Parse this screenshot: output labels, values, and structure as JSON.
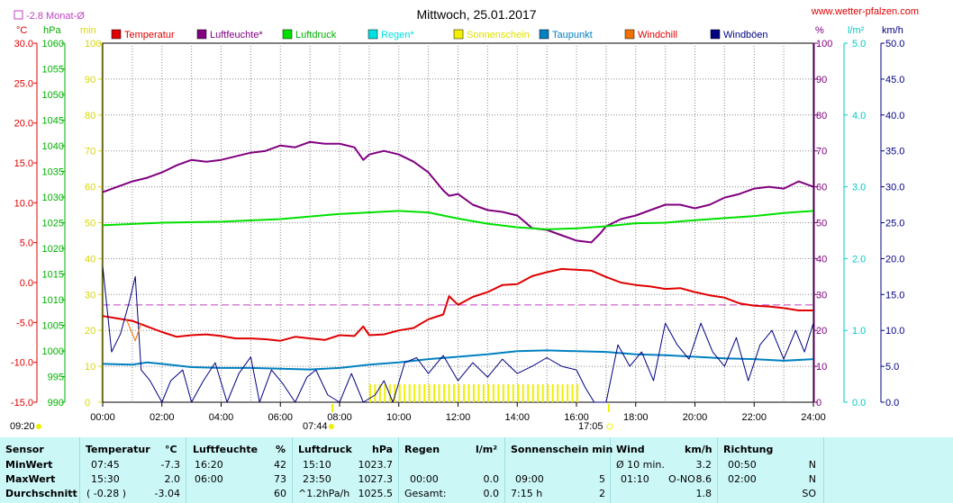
{
  "header": {
    "title": "Mittwoch, 25.01.2017",
    "site": "www.wetter-pfalzen.com",
    "month_avg": "-2.8 Monat-Ø"
  },
  "axis_units": {
    "temp": "°C",
    "press": "hPa",
    "min": "min",
    "pct": "%",
    "rain": "l/m²",
    "wind": "km/h"
  },
  "legend": [
    {
      "label": "Temperatur",
      "color": "#e00000",
      "text_color": "#e00000"
    },
    {
      "label": "Luftfeuchte*",
      "color": "#800080",
      "text_color": "#800080"
    },
    {
      "label": "Luftdruck",
      "color": "#00e000",
      "text_color": "#00b000"
    },
    {
      "label": "Regen*",
      "color": "#00e0e0",
      "text_color": "#00e0e0"
    },
    {
      "label": "Sonnenschein",
      "color": "#f0f000",
      "text_color": "#e0e000"
    },
    {
      "label": "Taupunkt",
      "color": "#0080c0",
      "text_color": "#0080c0"
    },
    {
      "label": "Windchill",
      "color": "#f07000",
      "text_color": "#e00000"
    },
    {
      "label": "Windböen",
      "color": "#000080",
      "text_color": "#000080"
    }
  ],
  "time_markers": {
    "sunrise_left": "09:20",
    "sunrise": "07:44",
    "sunset": "17:05"
  },
  "chart_data": {
    "type": "line",
    "x_ticks": [
      "00:00",
      "02:00",
      "04:00",
      "06:00",
      "08:00",
      "10:00",
      "12:00",
      "14:00",
      "16:00",
      "18:00",
      "20:00",
      "22:00",
      "24:00"
    ],
    "axes": {
      "temp": {
        "ticks": [
          "30.0",
          "25.0",
          "20.0",
          "15.0",
          "10.0",
          "5.0",
          "0.0",
          "-5.0",
          "-10.0",
          "-15.0"
        ],
        "range": [
          -15,
          30
        ]
      },
      "press": {
        "ticks": [
          "1060",
          "1055",
          "1050",
          "1045",
          "1040",
          "1035",
          "1030",
          "1025",
          "1020",
          "1015",
          "1010",
          "1005",
          "1000",
          "995",
          "990"
        ],
        "range": [
          990,
          1060
        ]
      },
      "min": {
        "ticks": [
          "100",
          "90",
          "80",
          "70",
          "60",
          "50",
          "40",
          "30",
          "20",
          "10",
          "0"
        ],
        "range": [
          0,
          100
        ]
      },
      "pct": {
        "ticks": [
          "100",
          "90",
          "80",
          "70",
          "60",
          "50",
          "40",
          "30",
          "20",
          "10",
          "0"
        ],
        "range": [
          0,
          100
        ]
      },
      "rain": {
        "ticks": [
          "5.0",
          "4.0",
          "3.0",
          "2.0",
          "1.0",
          "0.0"
        ],
        "range": [
          0,
          5
        ]
      },
      "wind": {
        "ticks": [
          "50.0",
          "45.0",
          "40.0",
          "35.0",
          "30.0",
          "25.0",
          "20.0",
          "15.0",
          "10.0",
          "5.0",
          "0.0"
        ],
        "range": [
          0,
          50
        ]
      }
    },
    "month_avg_temp": -2.8,
    "series": [
      {
        "name": "Temperatur",
        "axis": "temp",
        "points": [
          [
            0,
            -4.2
          ],
          [
            0.5,
            -4.5
          ],
          [
            1,
            -4.8
          ],
          [
            1.5,
            -5.5
          ],
          [
            2,
            -6.2
          ],
          [
            2.5,
            -6.8
          ],
          [
            3,
            -6.6
          ],
          [
            3.5,
            -6.5
          ],
          [
            4,
            -6.7
          ],
          [
            4.5,
            -7.0
          ],
          [
            5,
            -7.0
          ],
          [
            5.5,
            -7.1
          ],
          [
            6,
            -7.3
          ],
          [
            6.5,
            -6.8
          ],
          [
            7,
            -7.0
          ],
          [
            7.5,
            -7.2
          ],
          [
            8,
            -6.6
          ],
          [
            8.5,
            -6.7
          ],
          [
            8.8,
            -5.5
          ],
          [
            9,
            -6.6
          ],
          [
            9.5,
            -6.5
          ],
          [
            10,
            -6.0
          ],
          [
            10.5,
            -5.7
          ],
          [
            11,
            -4.6
          ],
          [
            11.5,
            -4.0
          ],
          [
            11.7,
            -1.7
          ],
          [
            12,
            -2.8
          ],
          [
            12.5,
            -1.8
          ],
          [
            13,
            -1.2
          ],
          [
            13.5,
            -0.3
          ],
          [
            14,
            -0.2
          ],
          [
            14.5,
            0.8
          ],
          [
            15,
            1.3
          ],
          [
            15.5,
            1.7
          ],
          [
            16,
            1.6
          ],
          [
            16.5,
            1.5
          ],
          [
            17,
            0.7
          ],
          [
            17.5,
            0.0
          ],
          [
            18,
            -0.3
          ],
          [
            18.5,
            -0.5
          ],
          [
            19,
            -0.8
          ],
          [
            19.5,
            -0.7
          ],
          [
            20,
            -1.2
          ],
          [
            20.5,
            -1.6
          ],
          [
            21,
            -1.9
          ],
          [
            21.5,
            -2.6
          ],
          [
            22,
            -2.9
          ],
          [
            22.5,
            -3.0
          ],
          [
            23,
            -3.2
          ],
          [
            23.5,
            -3.5
          ],
          [
            24,
            -3.5
          ]
        ]
      },
      {
        "name": "Luftfeuchte*",
        "axis": "pct",
        "points": [
          [
            0,
            58.5
          ],
          [
            0.5,
            60
          ],
          [
            1,
            61.5
          ],
          [
            1.5,
            62.5
          ],
          [
            2,
            64
          ],
          [
            2.5,
            66
          ],
          [
            3,
            67.5
          ],
          [
            3.5,
            67
          ],
          [
            4,
            67.5
          ],
          [
            4.5,
            68.5
          ],
          [
            5,
            69.5
          ],
          [
            5.5,
            70
          ],
          [
            6,
            71.5
          ],
          [
            6.5,
            71
          ],
          [
            7,
            72.5
          ],
          [
            7.5,
            72
          ],
          [
            8,
            72
          ],
          [
            8.5,
            71
          ],
          [
            8.8,
            67.5
          ],
          [
            9,
            69
          ],
          [
            9.5,
            70
          ],
          [
            10,
            69
          ],
          [
            10.5,
            67
          ],
          [
            11,
            64
          ],
          [
            11.5,
            59
          ],
          [
            11.7,
            57.5
          ],
          [
            12,
            58
          ],
          [
            12.5,
            55
          ],
          [
            13,
            53.5
          ],
          [
            13.5,
            53
          ],
          [
            14,
            52
          ],
          [
            14.5,
            48.5
          ],
          [
            15,
            48
          ],
          [
            15.5,
            46.5
          ],
          [
            16,
            45
          ],
          [
            16.5,
            44.5
          ],
          [
            16.8,
            47
          ],
          [
            17,
            49
          ],
          [
            17.5,
            51
          ],
          [
            18,
            52
          ],
          [
            18.5,
            53.5
          ],
          [
            19,
            55
          ],
          [
            19.5,
            55
          ],
          [
            20,
            54
          ],
          [
            20.5,
            55
          ],
          [
            21,
            57
          ],
          [
            21.5,
            58
          ],
          [
            22,
            59.5
          ],
          [
            22.5,
            60
          ],
          [
            23,
            59.5
          ],
          [
            23.5,
            61.5
          ],
          [
            24,
            60
          ]
        ]
      },
      {
        "name": "Luftdruck",
        "axis": "press",
        "points": [
          [
            0,
            1024.5
          ],
          [
            2,
            1025.0
          ],
          [
            4,
            1025.2
          ],
          [
            6,
            1025.7
          ],
          [
            8,
            1026.7
          ],
          [
            10,
            1027.3
          ],
          [
            11,
            1027.0
          ],
          [
            12,
            1025.8
          ],
          [
            13,
            1024.8
          ],
          [
            14,
            1024.1
          ],
          [
            15,
            1023.7
          ],
          [
            16,
            1023.9
          ],
          [
            17,
            1024.3
          ],
          [
            18,
            1024.9
          ],
          [
            19,
            1025.0
          ],
          [
            20,
            1025.5
          ],
          [
            21,
            1025.9
          ],
          [
            22,
            1026.3
          ],
          [
            23,
            1026.9
          ],
          [
            24,
            1027.3
          ]
        ]
      },
      {
        "name": "Taupunkt",
        "axis": "temp",
        "points": [
          [
            0,
            -10.2
          ],
          [
            1,
            -10.3
          ],
          [
            1.5,
            -10.0
          ],
          [
            2,
            -10.2
          ],
          [
            3,
            -10.6
          ],
          [
            4,
            -10.7
          ],
          [
            5,
            -10.7
          ],
          [
            6,
            -10.8
          ],
          [
            7,
            -10.9
          ],
          [
            8,
            -10.7
          ],
          [
            9,
            -10.3
          ],
          [
            10,
            -10.0
          ],
          [
            11,
            -9.6
          ],
          [
            12,
            -9.3
          ],
          [
            13,
            -9.0
          ],
          [
            14,
            -8.6
          ],
          [
            15,
            -8.5
          ],
          [
            16,
            -8.6
          ],
          [
            17,
            -8.7
          ],
          [
            18,
            -9.0
          ],
          [
            19,
            -9.1
          ],
          [
            20,
            -9.3
          ],
          [
            21,
            -9.5
          ],
          [
            22,
            -9.6
          ],
          [
            23,
            -9.8
          ],
          [
            24,
            -9.6
          ]
        ]
      },
      {
        "name": "Windböen",
        "axis": "wind",
        "points": [
          [
            0,
            19
          ],
          [
            0.3,
            7
          ],
          [
            0.6,
            9.5
          ],
          [
            0.9,
            14
          ],
          [
            1.1,
            17.5
          ],
          [
            1.3,
            4.5
          ],
          [
            1.6,
            3
          ],
          [
            2,
            0
          ],
          [
            2.3,
            3
          ],
          [
            2.7,
            4.5
          ],
          [
            3,
            0
          ],
          [
            3.4,
            3
          ],
          [
            3.8,
            5.5
          ],
          [
            4.2,
            0
          ],
          [
            4.6,
            4
          ],
          [
            5,
            6.3
          ],
          [
            5.3,
            0
          ],
          [
            5.7,
            4.5
          ],
          [
            6.1,
            2.5
          ],
          [
            6.5,
            0
          ],
          [
            6.9,
            3.5
          ],
          [
            7.2,
            4.5
          ],
          [
            7.6,
            1
          ],
          [
            8,
            0
          ],
          [
            8.4,
            4
          ],
          [
            8.8,
            0
          ],
          [
            9.2,
            1
          ],
          [
            9.5,
            3
          ],
          [
            9.8,
            0
          ],
          [
            10.2,
            5.5
          ],
          [
            10.6,
            6.2
          ],
          [
            11,
            4
          ],
          [
            11.5,
            6.5
          ],
          [
            12,
            3
          ],
          [
            12.5,
            5.5
          ],
          [
            13,
            3.5
          ],
          [
            13.5,
            6
          ],
          [
            14,
            4
          ],
          [
            14.5,
            5
          ],
          [
            15,
            6.2
          ],
          [
            15.5,
            5
          ],
          [
            16,
            4.5
          ],
          [
            16.3,
            2
          ],
          [
            16.6,
            0
          ],
          [
            17,
            0
          ],
          [
            17.4,
            8
          ],
          [
            17.8,
            5
          ],
          [
            18.2,
            7
          ],
          [
            18.6,
            3
          ],
          [
            19,
            11
          ],
          [
            19.4,
            8
          ],
          [
            19.8,
            6
          ],
          [
            20.2,
            11
          ],
          [
            20.6,
            7
          ],
          [
            21,
            5
          ],
          [
            21.4,
            9
          ],
          [
            21.8,
            3
          ],
          [
            22.2,
            8
          ],
          [
            22.6,
            10
          ],
          [
            23,
            6
          ],
          [
            23.4,
            10
          ],
          [
            23.7,
            7
          ],
          [
            24,
            11
          ]
        ]
      },
      {
        "name": "Sonnenschein",
        "axis": "min",
        "type": "bars",
        "range": [
          9.0,
          16.1
        ],
        "value": 5
      },
      {
        "name": "Windchill",
        "axis": "temp",
        "points": [
          [
            0.8,
            -4.6
          ],
          [
            1.1,
            -7.3
          ],
          [
            1.3,
            -5.1
          ]
        ]
      }
    ]
  },
  "table": {
    "headers": [
      "Sensor",
      "Temperatur",
      "°C",
      "Luftfeuchte",
      "%",
      "Luftdruck",
      "hPa",
      "Regen",
      "l/m²",
      "Sonnenschein min",
      "Wind",
      "km/h",
      "Richtung"
    ],
    "min_label": "MinWert",
    "max_label": "MaxWert",
    "avg_label": "Durchschnitt",
    "temp": {
      "min_time": "07:45",
      "min_val": "-7.3",
      "max_time": "15:30",
      "max_val": "2.0",
      "avg_time": "( -0.28 )",
      "avg_val": "-3.04"
    },
    "hum": {
      "min_time": "16:20",
      "min_val": "42",
      "max_time": "06:00",
      "max_val": "73",
      "avg_val": "60"
    },
    "press": {
      "min_time": "15:10",
      "min_val": "1023.7",
      "max_time": "23:50",
      "max_val": "1027.3",
      "avg_trend": "^1.2hPa/h",
      "avg_val": "1025.5"
    },
    "rain": {
      "min_val": "",
      "max_time": "00:00",
      "max_val": "0.0",
      "avg_label": "Gesamt:",
      "avg_val": "0.0"
    },
    "sun": {
      "max_time": "09:00",
      "max_val": "5",
      "avg_time": "7:15 h",
      "avg_val": "2"
    },
    "wind": {
      "min_label": "Ø 10 min.",
      "min_val": "3.2",
      "max_time": "01:10",
      "max_dir": "O-NO",
      "max_val": "8.6",
      "avg_val": "1.8"
    },
    "dir": {
      "min_time": "00:50",
      "min_val": "N",
      "max_time": "02:00",
      "max_val": "N",
      "avg_val": "SO"
    }
  }
}
